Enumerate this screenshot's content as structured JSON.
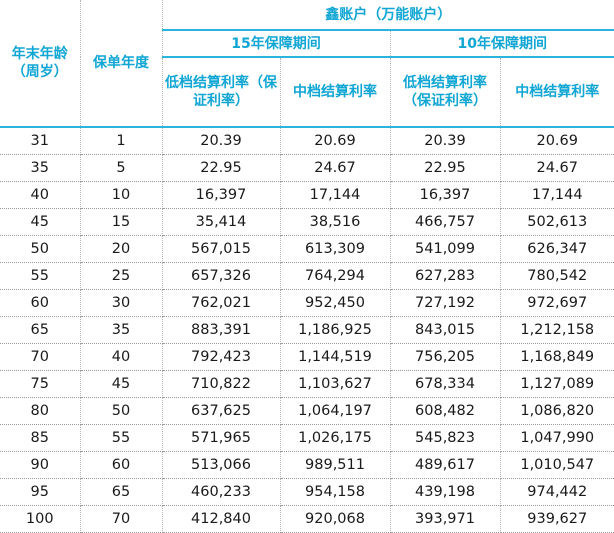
{
  "header": {
    "age_label": "年末年龄（周岁）",
    "policy_year_label": "保单年度",
    "account_label": "鑫账户（万能账户）",
    "period_15_label": "15年保障期间",
    "period_10_label": "10年保障期间",
    "low_rate_label": "低档结算利率（保证利率）",
    "mid_rate_label": "中档结算利率"
  },
  "rows": [
    [
      "31",
      "1",
      "20.39",
      "20.69",
      "20.39",
      "20.69"
    ],
    [
      "35",
      "5",
      "22.95",
      "24.67",
      "22.95",
      "24.67"
    ],
    [
      "40",
      "10",
      "16,397",
      "17,144",
      "16,397",
      "17,144"
    ],
    [
      "45",
      "15",
      "35,414",
      "38,516",
      "466,757",
      "502,613"
    ],
    [
      "50",
      "20",
      "567,015",
      "613,309",
      "541,099",
      "626,347"
    ],
    [
      "55",
      "25",
      "657,326",
      "764,294",
      "627,283",
      "780,542"
    ],
    [
      "60",
      "30",
      "762,021",
      "952,450",
      "727,192",
      "972,697"
    ],
    [
      "65",
      "35",
      "883,391",
      "1,186,925",
      "843,015",
      "1,212,158"
    ],
    [
      "70",
      "40",
      "792,423",
      "1,144,519",
      "756,205",
      "1,168,849"
    ],
    [
      "75",
      "45",
      "710,822",
      "1,103,627",
      "678,334",
      "1,127,089"
    ],
    [
      "80",
      "50",
      "637,625",
      "1,064,197",
      "608,482",
      "1,086,820"
    ],
    [
      "85",
      "55",
      "571,965",
      "1,026,175",
      "545,823",
      "1,047,990"
    ],
    [
      "90",
      "60",
      "513,066",
      "989,511",
      "489,617",
      "1,010,547"
    ],
    [
      "95",
      "65",
      "460,233",
      "954,158",
      "439,198",
      "974,442"
    ],
    [
      "100",
      "70",
      "412,840",
      "920,068",
      "393,971",
      "939,627"
    ]
  ]
}
